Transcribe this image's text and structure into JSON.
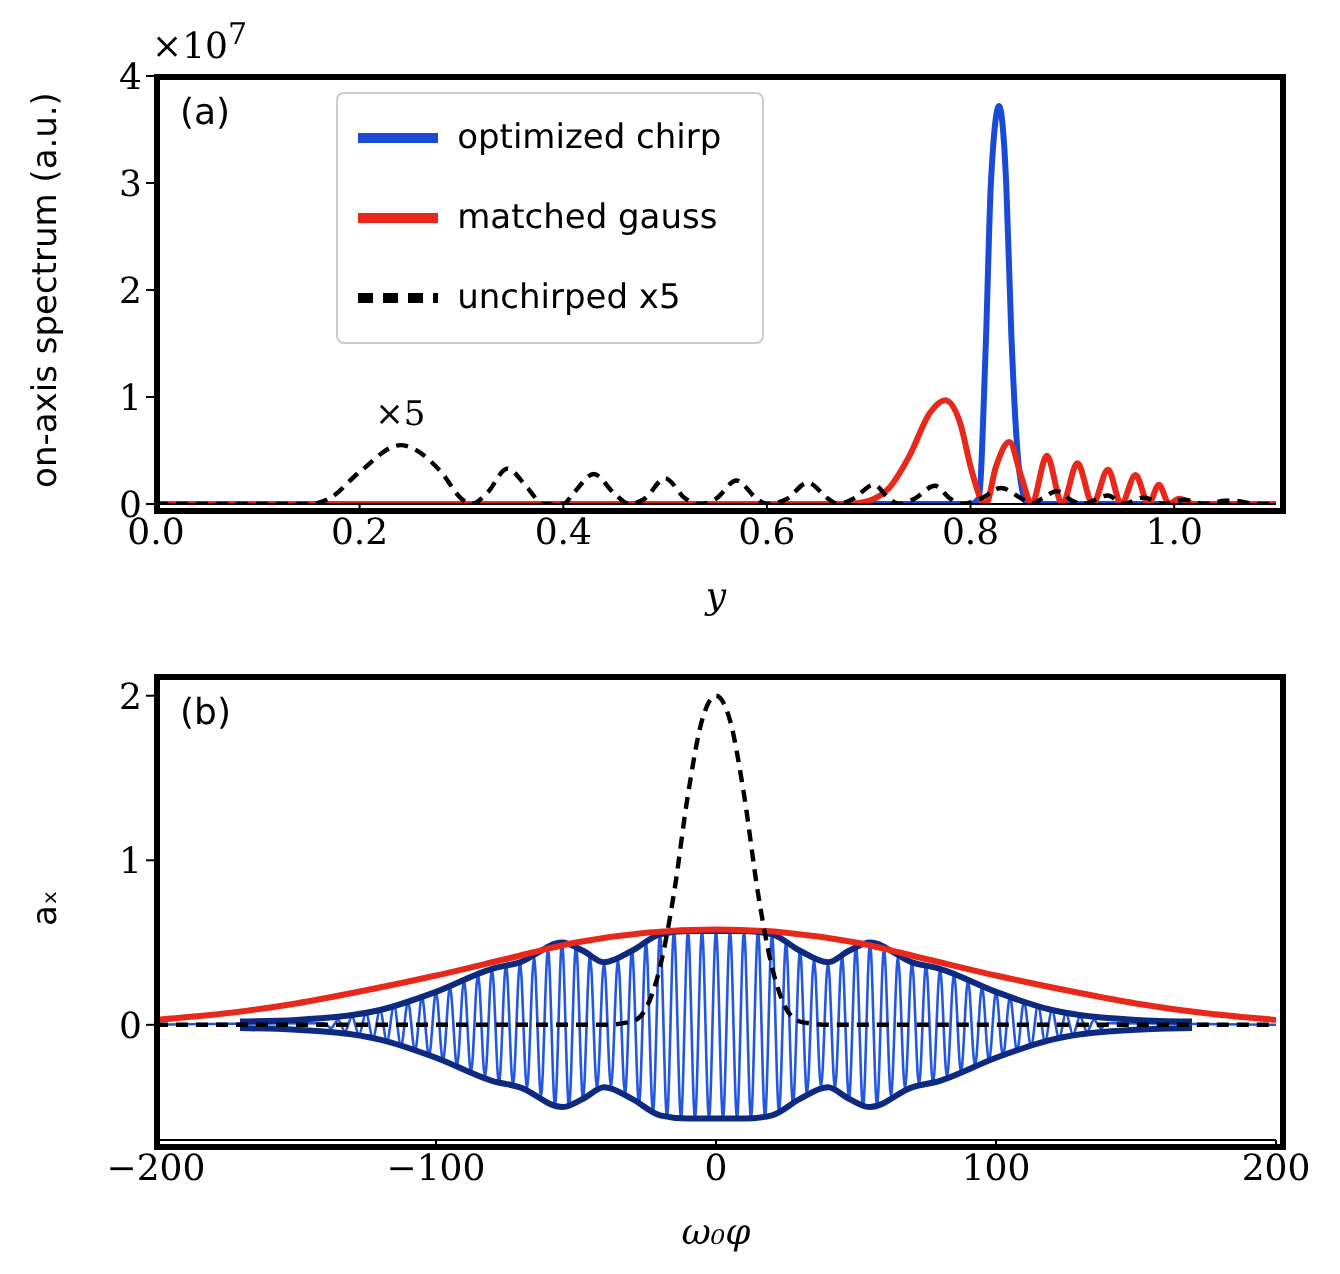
{
  "chart_data": [
    {
      "type": "line",
      "xlabel": "y",
      "ylabel": "on-axis spectrum (a.u.)",
      "xlim": [
        0,
        1.1
      ],
      "ylim": [
        0,
        4
      ],
      "xticks": [
        {
          "value": 0,
          "label": "0.0"
        },
        0.2,
        0.4,
        0.6,
        0.8,
        {
          "value": 1,
          "label": "1.0"
        }
      ],
      "yticks": [
        0,
        1,
        2,
        3,
        4
      ],
      "legend": "top",
      "annotations": [
        "(a)",
        "×10$^{7}$",
        {
          "text": "×5",
          "x": 0.24,
          "y": 0.55
        }
      ],
      "series": [
        {
          "name": "optimized chirp",
          "color": "#1a4bd6",
          "x": [
            0,
            0.8,
            0.808,
            0.815,
            0.82,
            0.828,
            0.835,
            0.84,
            0.848,
            0.856,
            1.1
          ],
          "values": [
            0,
            0,
            0.05,
            1.5,
            3.0,
            3.72,
            3.0,
            1.6,
            0.3,
            0,
            0
          ]
        },
        {
          "name": "matched gauss",
          "color": "#e8281a",
          "x": [
            0,
            0.68,
            0.7,
            0.72,
            0.74,
            0.76,
            0.775,
            0.79,
            0.8,
            0.81,
            0.815,
            0.825,
            0.838,
            0.85,
            0.86,
            0.875,
            0.89,
            0.905,
            0.92,
            0.935,
            0.948,
            0.962,
            0.975,
            0.985,
            0.995,
            1.005,
            1.02,
            1.1
          ],
          "values": [
            0,
            0,
            0.03,
            0.15,
            0.45,
            0.85,
            0.97,
            0.75,
            0.35,
            0.05,
            0,
            0.35,
            0.58,
            0.25,
            0,
            0.45,
            0,
            0.38,
            0,
            0.32,
            0,
            0.27,
            0,
            0.18,
            0,
            0.05,
            0,
            0
          ]
        },
        {
          "name": "unchirped x5",
          "color": "#000000",
          "line_style": "dashed",
          "x": [
            0,
            0.15,
            0.17,
            0.2,
            0.24,
            0.28,
            0.3,
            0.31,
            0.325,
            0.345,
            0.365,
            0.38,
            0.4,
            0.41,
            0.43,
            0.45,
            0.465,
            0.48,
            0.5,
            0.52,
            0.535,
            0.55,
            0.57,
            0.59,
            0.6,
            0.62,
            0.64,
            0.66,
            0.67,
            0.685,
            0.705,
            0.72,
            0.73,
            0.745,
            0.765,
            0.78,
            0.79,
            0.81,
            0.83,
            0.85,
            0.86,
            0.87,
            0.885,
            0.9,
            0.91,
            0.935,
            0.95,
            0.97,
            0.99,
            1.01,
            1.03,
            1.05,
            1.06,
            1.08,
            1.1
          ],
          "values": [
            0,
            0,
            0.05,
            0.3,
            0.55,
            0.3,
            0.05,
            0,
            0.1,
            0.33,
            0.15,
            0,
            0,
            0.1,
            0.28,
            0.1,
            0,
            0.05,
            0.24,
            0.05,
            0,
            0.05,
            0.22,
            0.05,
            0,
            0.05,
            0.2,
            0.05,
            0,
            0.05,
            0.18,
            0.05,
            0,
            0.05,
            0.17,
            0.05,
            0,
            0.05,
            0.15,
            0.05,
            0,
            0.05,
            0.12,
            0.03,
            0,
            0.08,
            0,
            0.06,
            0,
            0.04,
            0,
            0.03,
            0.03,
            0,
            0
          ]
        }
      ]
    },
    {
      "type": "line",
      "xlabel": "ω₀φ",
      "ylabel": "aₓ",
      "xlim": [
        -200,
        200
      ],
      "ylim": [
        -0.7,
        2.12
      ],
      "xticks": [
        {
          "value": -200,
          "label": "−200"
        },
        {
          "value": -100,
          "label": "−100"
        },
        0,
        100,
        200
      ],
      "yticks": [
        0,
        1,
        2
      ],
      "annotations": [
        "(b)"
      ],
      "series": [
        {
          "color": "#2457e0",
          "x": [
            -200,
            -140,
            -137.5,
            -135,
            -132.5,
            -130,
            -127.5,
            -125,
            -122.5,
            -120,
            -117.5,
            -115,
            -112.5,
            -110,
            -107.5,
            -105,
            -102.5,
            -100,
            -97.5,
            -95,
            -92.5,
            -90,
            -87.5,
            -85,
            -82.5,
            -80,
            -77.5,
            -75,
            -72.5,
            -70,
            -67.5,
            -65,
            -62.5,
            -60,
            -57.5,
            -55,
            -52.5,
            -50,
            -47.5,
            -45,
            -42.5,
            -40,
            -37.5,
            -35,
            -32.5,
            -30,
            -27.5,
            -25,
            -22.5,
            -20,
            -17.5,
            -15,
            -12.5,
            -10,
            -7.5,
            -5,
            -2.5,
            0,
            2.5,
            5,
            7.5,
            10,
            12.5,
            15,
            17.5,
            20,
            22.5,
            25,
            27.5,
            30,
            32.5,
            35,
            37.5,
            40,
            42.5,
            45,
            47.5,
            50,
            52.5,
            55,
            57.5,
            60,
            62.5,
            65,
            67.5,
            70,
            72.5,
            75,
            77.5,
            80,
            82.5,
            85,
            87.5,
            90,
            92.5,
            95,
            97.5,
            100,
            102.5,
            105,
            107.5,
            110,
            112.5,
            115,
            117.5,
            120,
            122.5,
            125,
            127.5,
            130,
            132.5,
            135,
            137.5,
            140,
            200
          ],
          "values": [
            0,
            0.01,
            -0.02,
            0.03,
            -0.04,
            0.05,
            -0.06,
            0.07,
            -0.08,
            0.09,
            -0.1,
            0.12,
            -0.13,
            0.14,
            -0.16,
            0.17,
            -0.19,
            0.2,
            -0.22,
            0.23,
            -0.25,
            0.27,
            -0.29,
            0.31,
            -0.32,
            0.34,
            -0.36,
            0.37,
            -0.37,
            0.38,
            -0.39,
            0.41,
            -0.43,
            0.46,
            -0.49,
            0.5,
            -0.5,
            0.48,
            -0.45,
            0.42,
            -0.39,
            0.38,
            -0.38,
            0.4,
            -0.42,
            0.45,
            -0.48,
            0.5,
            -0.53,
            0.55,
            -0.56,
            0.57,
            -0.57,
            0.57,
            -0.57,
            0.57,
            -0.57,
            0.57,
            -0.57,
            0.57,
            -0.57,
            0.57,
            -0.57,
            0.57,
            -0.56,
            0.55,
            -0.53,
            0.5,
            -0.48,
            0.45,
            -0.42,
            0.4,
            -0.38,
            0.38,
            -0.39,
            0.42,
            -0.45,
            0.48,
            -0.5,
            0.5,
            -0.49,
            0.46,
            -0.43,
            0.41,
            -0.39,
            0.38,
            -0.37,
            0.37,
            -0.36,
            0.34,
            -0.32,
            0.31,
            -0.29,
            0.27,
            -0.25,
            0.23,
            -0.22,
            0.2,
            -0.19,
            0.17,
            -0.16,
            0.14,
            -0.13,
            0.12,
            -0.1,
            0.09,
            -0.08,
            0.07,
            -0.06,
            0.05,
            -0.04,
            0.03,
            -0.02,
            0.01,
            0
          ]
        },
        {
          "color": "#0d2a80",
          "x": [
            -170,
            -150,
            -120,
            -100,
            -80,
            -70,
            -55,
            -47.5,
            -40,
            -30,
            -20,
            -10,
            0,
            10,
            20,
            30,
            40,
            47.5,
            55,
            70,
            80,
            100,
            120,
            150,
            170
          ],
          "values": [
            0.02,
            0.03,
            0.09,
            0.2,
            0.34,
            0.38,
            0.5,
            0.45,
            0.38,
            0.45,
            0.55,
            0.57,
            0.57,
            0.57,
            0.55,
            0.45,
            0.38,
            0.45,
            0.5,
            0.38,
            0.34,
            0.2,
            0.09,
            0.03,
            0.02
          ]
        },
        {
          "color": "#0d2a80",
          "x": [
            -170,
            -150,
            -120,
            -100,
            -80,
            -70,
            -55,
            -47.5,
            -40,
            -30,
            -20,
            -10,
            0,
            10,
            20,
            30,
            40,
            47.5,
            55,
            70,
            80,
            100,
            120,
            150,
            170
          ],
          "values": [
            -0.02,
            -0.03,
            -0.09,
            -0.2,
            -0.34,
            -0.38,
            -0.5,
            -0.45,
            -0.38,
            -0.45,
            -0.55,
            -0.57,
            -0.57,
            -0.57,
            -0.55,
            -0.45,
            -0.38,
            -0.45,
            -0.5,
            -0.38,
            -0.34,
            -0.2,
            -0.09,
            -0.03,
            -0.02
          ]
        },
        {
          "color": "#e8281a",
          "x": [
            -200,
            -175,
            -150,
            -125,
            -100,
            -75,
            -50,
            -25,
            0,
            25,
            50,
            75,
            100,
            125,
            150,
            175,
            200
          ],
          "values": [
            0.03,
            0.07,
            0.13,
            0.21,
            0.3,
            0.4,
            0.5,
            0.56,
            0.58,
            0.56,
            0.5,
            0.4,
            0.3,
            0.21,
            0.13,
            0.07,
            0.03
          ]
        },
        {
          "color": "#000000",
          "line_style": "dashed",
          "x": [
            -200,
            -40,
            -30,
            -25,
            -20,
            -15,
            -10,
            -5,
            0,
            5,
            10,
            15,
            20,
            25,
            30,
            40,
            200
          ],
          "values": [
            0,
            0,
            0.02,
            0.1,
            0.35,
            0.8,
            1.4,
            1.85,
            2.0,
            1.85,
            1.4,
            0.8,
            0.35,
            0.1,
            0.02,
            0,
            0
          ]
        }
      ]
    }
  ]
}
